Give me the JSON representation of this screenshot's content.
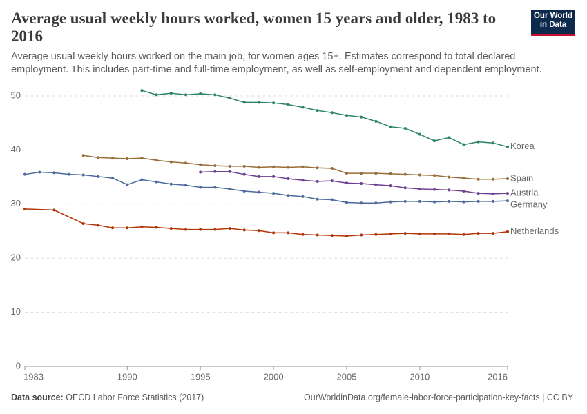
{
  "chart_data": {
    "type": "line",
    "title": "Average usual weekly hours worked, women 15 years and older, 1983 to 2016",
    "subtitle": "Average usual weekly hours worked on the main job, for women ages 15+. Estimates correspond to total declared employment. This includes part-time and full-time employment, as well as self-employment and dependent employment.",
    "logo": [
      "Our World",
      "in Data"
    ],
    "source_label": "Data source:",
    "source": "OECD Labor Force Statistics (2017)",
    "url": "OurWorldinData.org/female-labor-force-participation-key-facts | CC BY",
    "xlim": [
      1983,
      2016
    ],
    "xticks": [
      1983,
      1990,
      1995,
      2000,
      2005,
      2010,
      2016
    ],
    "ylim": [
      0,
      50
    ],
    "yticks": [
      0,
      10,
      20,
      30,
      40,
      50
    ],
    "grid": true,
    "series": [
      {
        "name": "Korea",
        "color": "#2c8465",
        "x": [
          1991,
          1992,
          1993,
          1994,
          1995,
          1996,
          1997,
          1998,
          1999,
          2000,
          2001,
          2002,
          2003,
          2004,
          2005,
          2006,
          2007,
          2008,
          2009,
          2010,
          2011,
          2012,
          2013,
          2014,
          2015,
          2016
        ],
        "values": [
          51.0,
          50.2,
          50.5,
          50.2,
          50.4,
          50.2,
          49.6,
          48.8,
          48.8,
          48.7,
          48.4,
          47.9,
          47.3,
          46.9,
          46.4,
          46.1,
          45.3,
          44.3,
          44.0,
          42.9,
          41.7,
          42.3,
          41.0,
          41.5,
          41.3,
          40.6
        ]
      },
      {
        "name": "Spain",
        "color": "#996d39",
        "x": [
          1987,
          1988,
          1989,
          1990,
          1991,
          1992,
          1993,
          1994,
          1995,
          1996,
          1997,
          1998,
          1999,
          2000,
          2001,
          2002,
          2003,
          2004,
          2005,
          2006,
          2007,
          2008,
          2009,
          2010,
          2011,
          2012,
          2013,
          2014,
          2015,
          2016
        ],
        "values": [
          39.0,
          38.6,
          38.5,
          38.4,
          38.5,
          38.1,
          37.8,
          37.6,
          37.3,
          37.1,
          37.0,
          37.0,
          36.8,
          36.9,
          36.8,
          36.9,
          36.7,
          36.6,
          35.7,
          35.7,
          35.7,
          35.6,
          35.5,
          35.4,
          35.3,
          35.0,
          34.8,
          34.6,
          34.6,
          34.7
        ]
      },
      {
        "name": "Austria",
        "color": "#6d3e91",
        "x": [
          1995,
          1996,
          1997,
          1998,
          1999,
          2000,
          2001,
          2002,
          2003,
          2004,
          2005,
          2006,
          2007,
          2008,
          2009,
          2010,
          2011,
          2012,
          2013,
          2014,
          2015,
          2016
        ],
        "values": [
          35.9,
          36.0,
          36.0,
          35.5,
          35.1,
          35.1,
          34.7,
          34.4,
          34.2,
          34.3,
          33.9,
          33.8,
          33.6,
          33.4,
          33.0,
          32.8,
          32.7,
          32.6,
          32.4,
          32.0,
          31.9,
          32.0
        ]
      },
      {
        "name": "Germany",
        "color": "#4c6a9c",
        "x": [
          1983,
          1984,
          1985,
          1986,
          1987,
          1988,
          1989,
          1990,
          1991,
          1992,
          1993,
          1994,
          1995,
          1996,
          1997,
          1998,
          1999,
          2000,
          2001,
          2002,
          2003,
          2004,
          2005,
          2006,
          2007,
          2008,
          2009,
          2010,
          2011,
          2012,
          2013,
          2014,
          2015,
          2016
        ],
        "values": [
          35.5,
          35.9,
          35.8,
          35.5,
          35.4,
          35.1,
          34.8,
          33.6,
          34.5,
          34.1,
          33.7,
          33.5,
          33.1,
          33.1,
          32.8,
          32.4,
          32.2,
          32.0,
          31.6,
          31.4,
          30.9,
          30.8,
          30.3,
          30.2,
          30.2,
          30.4,
          30.5,
          30.5,
          30.4,
          30.5,
          30.4,
          30.5,
          30.5,
          30.6
        ]
      },
      {
        "name": "Netherlands",
        "color": "#b13507",
        "x": [
          1983,
          1985,
          1987,
          1988,
          1989,
          1990,
          1991,
          1992,
          1993,
          1994,
          1995,
          1996,
          1997,
          1998,
          1999,
          2000,
          2001,
          2002,
          2003,
          2004,
          2005,
          2006,
          2007,
          2008,
          2009,
          2010,
          2011,
          2012,
          2013,
          2014,
          2015,
          2016
        ],
        "values": [
          29.1,
          28.9,
          26.4,
          26.1,
          25.6,
          25.6,
          25.8,
          25.7,
          25.5,
          25.3,
          25.3,
          25.3,
          25.5,
          25.2,
          25.1,
          24.7,
          24.7,
          24.4,
          24.3,
          24.2,
          24.1,
          24.3,
          24.4,
          24.5,
          24.6,
          24.5,
          24.5,
          24.5,
          24.4,
          24.6,
          24.6,
          24.9
        ]
      }
    ]
  }
}
